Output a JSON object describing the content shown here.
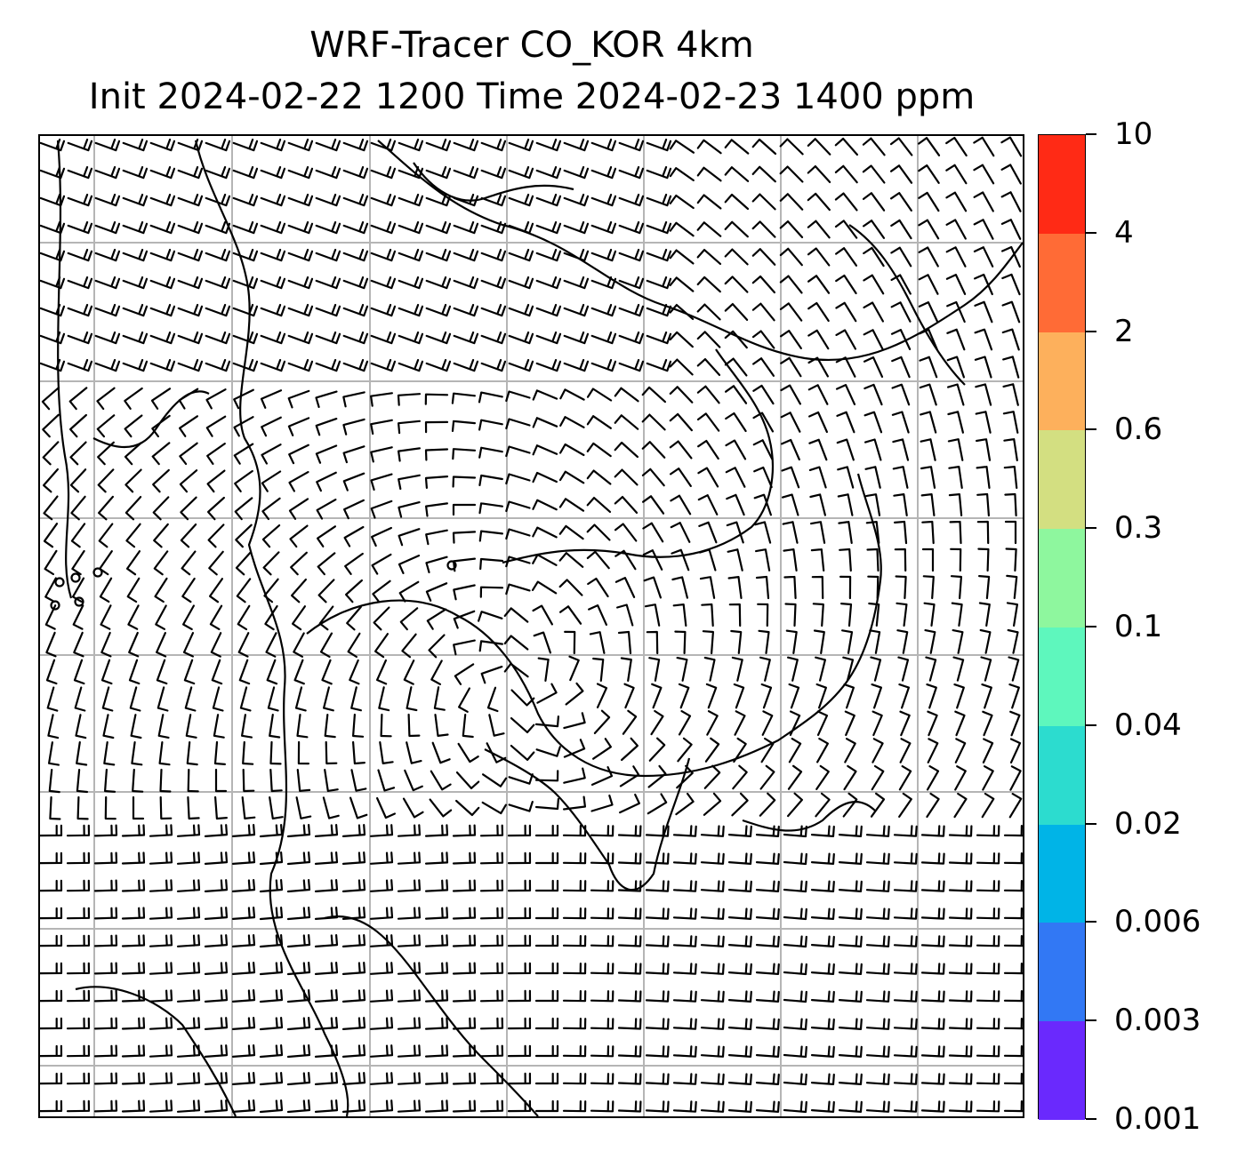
{
  "title": {
    "line1": "WRF-Tracer CO_KOR 4km",
    "line2": "Init 2024-02-22 1200 Time 2024-02-23 1400 ppm"
  },
  "map": {
    "type": "wind-barb-map",
    "gridlines": true,
    "gridline_color": "#b5b5b5",
    "barb_color": "#000000",
    "coastline_color": "#000000",
    "flow_description_hidden": true
  },
  "colorbar": {
    "tick_labels": [
      "10",
      "4",
      "2",
      "0.6",
      "0.3",
      "0.1",
      "0.04",
      "0.02",
      "0.006",
      "0.003",
      "0.001"
    ],
    "colors_top_to_bottom": [
      "#ff2a15",
      "#ff6b36",
      "#fdb05c",
      "#d3df81",
      "#8ef79e",
      "#5ef7bd",
      "#2cdccf",
      "#00b4e7",
      "#3278f4",
      "#6a29fd"
    ]
  }
}
